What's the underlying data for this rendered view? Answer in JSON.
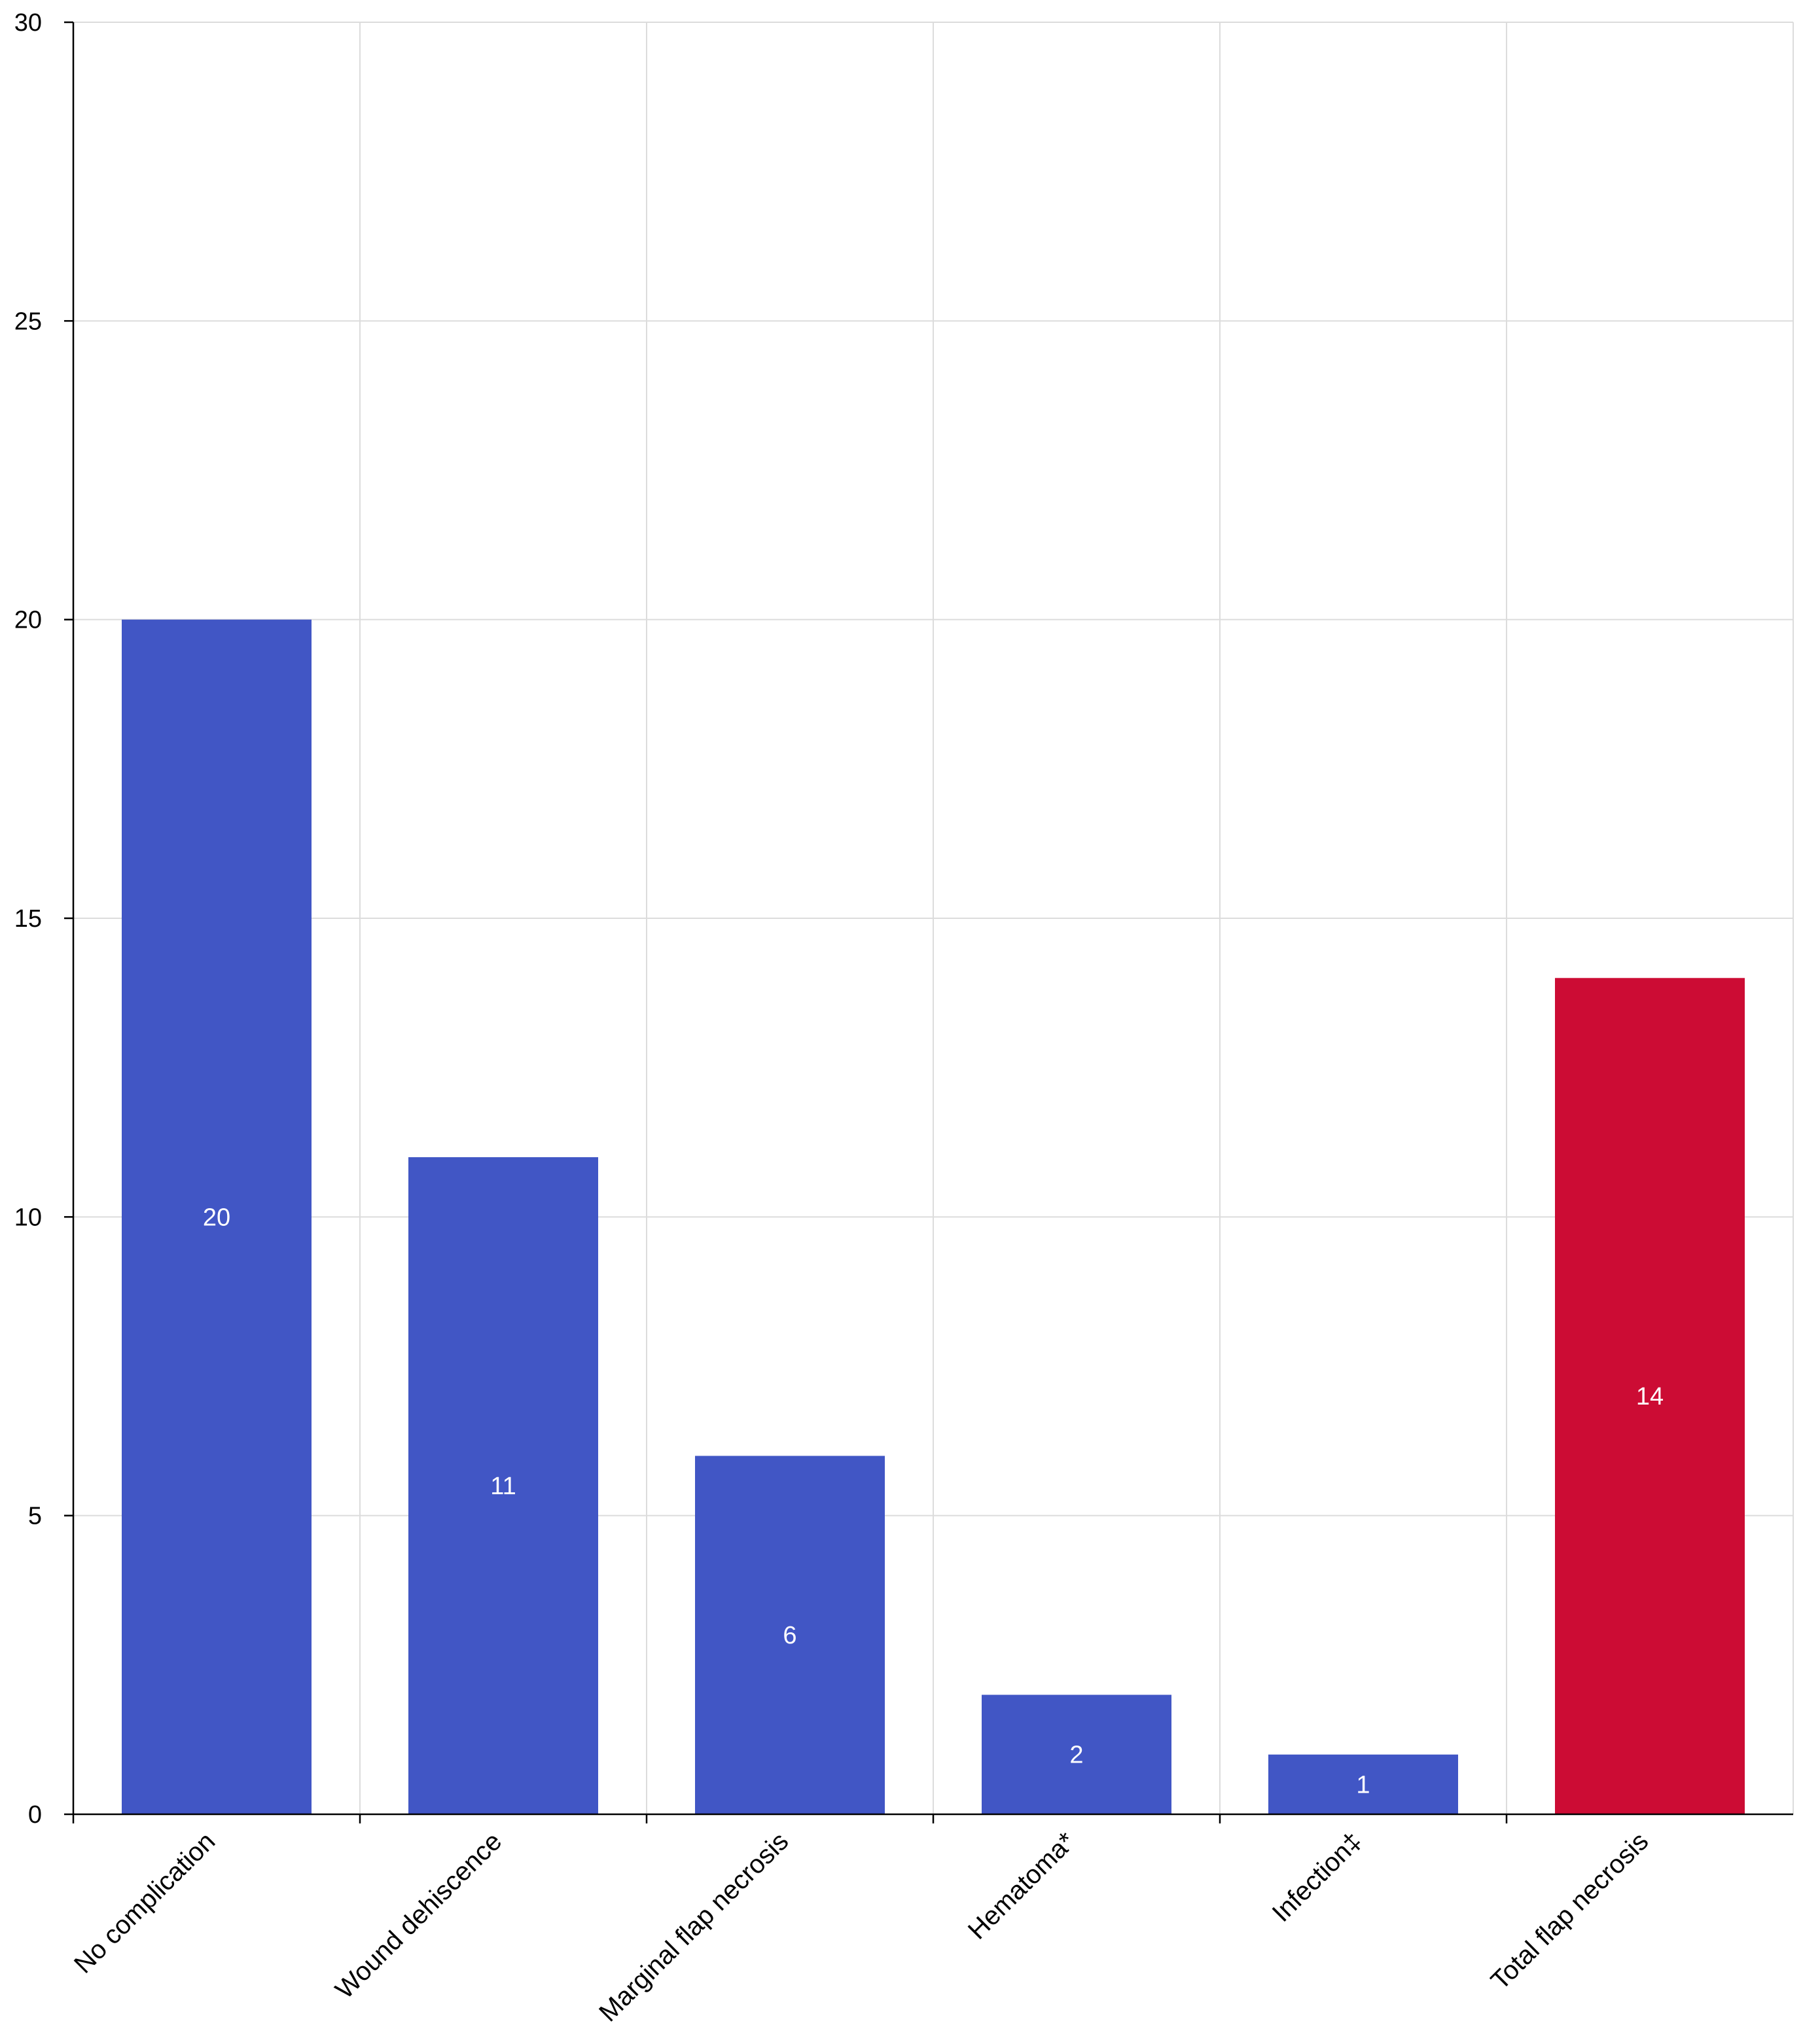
{
  "chart_data": {
    "type": "bar",
    "title": "",
    "xlabel": "",
    "ylabel": "",
    "categories": [
      "No complication",
      "Wound dehiscence",
      "Marginal flap necrosis",
      "Hematoma*",
      "Infection‡",
      "Total flap necrosis"
    ],
    "values": [
      20,
      11,
      6,
      2,
      1,
      14
    ],
    "data_labels": [
      "20",
      "11",
      "6",
      "2",
      "1",
      "14"
    ],
    "bar_colors": [
      "#4156c5",
      "#4156c5",
      "#4156c5",
      "#4156c5",
      "#4156c5",
      "#cc0c34"
    ],
    "ylim": [
      0,
      30
    ],
    "yticks": [
      0,
      5,
      10,
      15,
      20,
      25,
      30
    ],
    "grid": true,
    "legend": "none"
  }
}
